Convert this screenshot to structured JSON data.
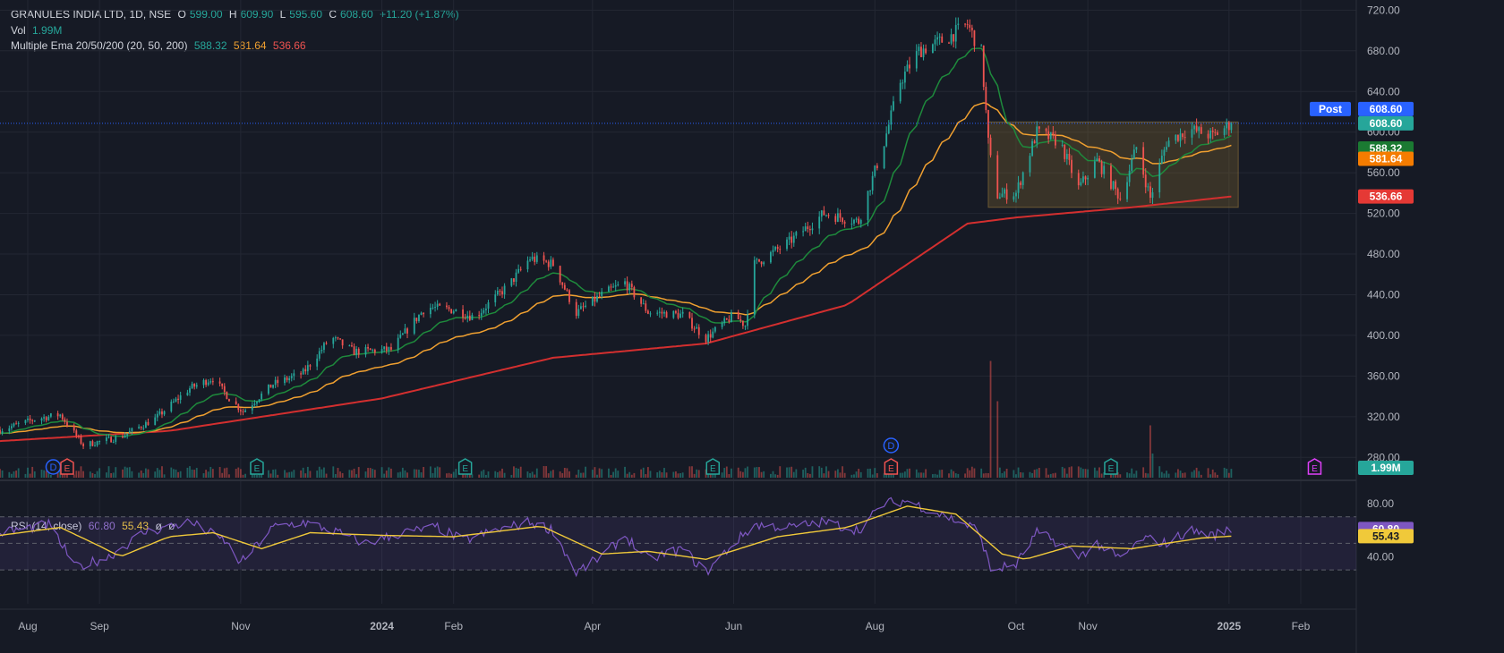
{
  "header": {
    "symbol": "GRANULES INDIA LTD, 1D, NSE",
    "o_label": "O",
    "o": "599.00",
    "h_label": "H",
    "h": "609.90",
    "l_label": "L",
    "l": "595.60",
    "c_label": "C",
    "c": "608.60",
    "change": "+11.20 (+1.87%)",
    "vol_label": "Vol",
    "vol": "1.99M",
    "ema_label": "Multiple Ema 20/50/200 (20, 50, 200)",
    "ema20": "588.32",
    "ema50": "581.64",
    "ema200": "536.66"
  },
  "rsi_header": {
    "label": "RSI (14, close)",
    "rsi": "60.80",
    "ma": "55.43",
    "s1": "ø",
    "s2": "ø"
  },
  "colors": {
    "background": "#161a25",
    "up": "#26a69a",
    "down": "#ef5350",
    "ema20": "#1e8a3c",
    "ema50": "#f0a030",
    "ema200": "#d32f2f",
    "rsi": "#7e57c2",
    "rsi_ma": "#f0c93a",
    "price_line": "#2962ff"
  },
  "chart_data": {
    "type": "candlestick",
    "title": "GRANULES INDIA LTD, 1D, NSE",
    "y_range": [
      260,
      730
    ],
    "y_ticks": [
      "720.00",
      "680.00",
      "640.00",
      "600.00",
      "560.00",
      "520.00",
      "480.00",
      "440.00",
      "400.00",
      "360.00",
      "320.00",
      "280.00"
    ],
    "x_range": [
      "2023-07-20",
      "2025-02-25"
    ],
    "x_ticks": [
      {
        "label": "Aug",
        "date": "2023-08-01"
      },
      {
        "label": "Sep",
        "date": "2023-09-01"
      },
      {
        "label": "Nov",
        "date": "2023-11-01"
      },
      {
        "label": "2024",
        "date": "2024-01-01"
      },
      {
        "label": "Feb",
        "date": "2024-02-01"
      },
      {
        "label": "Apr",
        "date": "2024-04-01"
      },
      {
        "label": "Jun",
        "date": "2024-06-01"
      },
      {
        "label": "Aug",
        "date": "2024-08-01"
      },
      {
        "label": "Oct",
        "date": "2024-10-01"
      },
      {
        "label": "Nov",
        "date": "2024-11-01"
      },
      {
        "label": "2025",
        "date": "2025-01-01"
      },
      {
        "label": "Feb",
        "date": "2025-02-01"
      }
    ],
    "last_close": 608.6,
    "price_path": [
      [
        "2023-07-20",
        307
      ],
      [
        "2023-08-05",
        318
      ],
      [
        "2023-08-15",
        322
      ],
      [
        "2023-08-25",
        292
      ],
      [
        "2023-09-10",
        300
      ],
      [
        "2023-09-25",
        318
      ],
      [
        "2023-10-10",
        348
      ],
      [
        "2023-10-20",
        358
      ],
      [
        "2023-10-27",
        338
      ],
      [
        "2023-11-02",
        325
      ],
      [
        "2023-11-15",
        352
      ],
      [
        "2023-11-28",
        363
      ],
      [
        "2023-12-10",
        398
      ],
      [
        "2023-12-20",
        384
      ],
      [
        "2024-01-05",
        386
      ],
      [
        "2024-01-20",
        428
      ],
      [
        "2024-02-01",
        425
      ],
      [
        "2024-02-10",
        418
      ],
      [
        "2024-02-25",
        450
      ],
      [
        "2024-03-05",
        476
      ],
      [
        "2024-03-15",
        470
      ],
      [
        "2024-03-25",
        422
      ],
      [
        "2024-04-05",
        440
      ],
      [
        "2024-04-15",
        452
      ],
      [
        "2024-04-25",
        423
      ],
      [
        "2024-05-10",
        420
      ],
      [
        "2024-05-20",
        397
      ],
      [
        "2024-06-01",
        420
      ],
      [
        "2024-06-06",
        410
      ],
      [
        "2024-06-10",
        470
      ],
      [
        "2024-06-25",
        492
      ],
      [
        "2024-07-10",
        520
      ],
      [
        "2024-07-25",
        512
      ],
      [
        "2024-08-05",
        590
      ],
      [
        "2024-08-12",
        650
      ],
      [
        "2024-08-20",
        680
      ],
      [
        "2024-09-01",
        692
      ],
      [
        "2024-09-10",
        706
      ],
      [
        "2024-09-16",
        678
      ],
      [
        "2024-09-19",
        590
      ],
      [
        "2024-09-22",
        538
      ],
      [
        "2024-10-01",
        540
      ],
      [
        "2024-10-10",
        600
      ],
      [
        "2024-10-20",
        590
      ],
      [
        "2024-10-28",
        545
      ],
      [
        "2024-11-05",
        572
      ],
      [
        "2024-11-15",
        535
      ],
      [
        "2024-11-22",
        585
      ],
      [
        "2024-11-28",
        535
      ],
      [
        "2024-12-05",
        590
      ],
      [
        "2024-12-15",
        603
      ],
      [
        "2024-12-25",
        596
      ],
      [
        "2025-01-02",
        608.6
      ]
    ],
    "series": [
      {
        "name": "EMA 20",
        "last": 588.32
      },
      {
        "name": "EMA 50",
        "last": 581.64
      },
      {
        "name": "EMA 200",
        "last": 536.66
      }
    ],
    "range_box": {
      "start": "2024-09-19",
      "end": "2025-01-05",
      "low": 526,
      "high": 610
    },
    "volume": {
      "last": "1.99M",
      "spikes": [
        {
          "date": "2024-09-20",
          "value": 2.9
        },
        {
          "date": "2024-09-23",
          "value": 1.9
        },
        {
          "date": "2024-11-28",
          "value": 1.3
        },
        {
          "date": "2024-11-29",
          "value": 0.6
        }
      ]
    },
    "events": [
      {
        "label": "D",
        "date": "2023-08-12",
        "type": "dividend"
      },
      {
        "label": "E",
        "date": "2023-08-18",
        "type": "earnings-red"
      },
      {
        "label": "E",
        "date": "2023-11-08",
        "type": "earnings"
      },
      {
        "label": "E",
        "date": "2024-02-06",
        "type": "earnings"
      },
      {
        "label": "E",
        "date": "2024-05-23",
        "type": "earnings"
      },
      {
        "label": "D",
        "date": "2024-08-08",
        "type": "dividend"
      },
      {
        "label": "E",
        "date": "2024-08-08",
        "type": "earnings-red"
      },
      {
        "label": "E",
        "date": "2024-11-11",
        "type": "earnings"
      },
      {
        "label": "E",
        "date": "2025-02-07",
        "type": "earnings-future"
      }
    ],
    "rsi": {
      "y_ticks": [
        "80.00",
        "40.00"
      ],
      "y_range": [
        18,
        92
      ],
      "upper": 70,
      "lower": 30,
      "mid": 50,
      "last": 60.8,
      "ma_last": 55.43,
      "path": [
        [
          "2023-07-20",
          58
        ],
        [
          "2023-08-10",
          64
        ],
        [
          "2023-08-22",
          32
        ],
        [
          "2023-09-05",
          40
        ],
        [
          "2023-09-20",
          58
        ],
        [
          "2023-10-10",
          66
        ],
        [
          "2023-10-25",
          52
        ],
        [
          "2023-11-01",
          35
        ],
        [
          "2023-11-15",
          62
        ],
        [
          "2023-11-28",
          66
        ],
        [
          "2023-12-10",
          60
        ],
        [
          "2023-12-25",
          50
        ],
        [
          "2024-01-10",
          58
        ],
        [
          "2024-01-25",
          62
        ],
        [
          "2024-02-05",
          52
        ],
        [
          "2024-02-20",
          60
        ],
        [
          "2024-03-05",
          66
        ],
        [
          "2024-03-15",
          60
        ],
        [
          "2024-03-25",
          28
        ],
        [
          "2024-04-05",
          40
        ],
        [
          "2024-04-15",
          56
        ],
        [
          "2024-04-25",
          38
        ],
        [
          "2024-05-10",
          46
        ],
        [
          "2024-05-20",
          28
        ],
        [
          "2024-06-01",
          50
        ],
        [
          "2024-06-10",
          64
        ],
        [
          "2024-06-25",
          62
        ],
        [
          "2024-07-10",
          66
        ],
        [
          "2024-07-25",
          60
        ],
        [
          "2024-08-05",
          80
        ],
        [
          "2024-08-15",
          82
        ],
        [
          "2024-09-01",
          70
        ],
        [
          "2024-09-15",
          60
        ],
        [
          "2024-09-20",
          30
        ],
        [
          "2024-10-01",
          34
        ],
        [
          "2024-10-10",
          58
        ],
        [
          "2024-10-20",
          50
        ],
        [
          "2024-10-28",
          40
        ],
        [
          "2024-11-05",
          50
        ],
        [
          "2024-11-15",
          38
        ],
        [
          "2024-11-25",
          54
        ],
        [
          "2024-12-05",
          50
        ],
        [
          "2024-12-15",
          60
        ],
        [
          "2024-12-25",
          56
        ],
        [
          "2025-01-02",
          60.8
        ]
      ],
      "ma_path": [
        [
          "2023-07-20",
          56
        ],
        [
          "2023-08-15",
          62
        ],
        [
          "2023-09-01",
          48
        ],
        [
          "2023-09-10",
          40
        ],
        [
          "2023-10-01",
          55
        ],
        [
          "2023-10-20",
          58
        ],
        [
          "2023-11-10",
          46
        ],
        [
          "2023-12-01",
          58
        ],
        [
          "2024-01-01",
          56
        ],
        [
          "2024-02-01",
          55
        ],
        [
          "2024-03-10",
          63
        ],
        [
          "2024-04-05",
          42
        ],
        [
          "2024-04-25",
          44
        ],
        [
          "2024-05-20",
          38
        ],
        [
          "2024-06-20",
          55
        ],
        [
          "2024-07-20",
          62
        ],
        [
          "2024-08-15",
          78
        ],
        [
          "2024-09-05",
          72
        ],
        [
          "2024-09-25",
          42
        ],
        [
          "2024-10-05",
          38
        ],
        [
          "2024-10-25",
          48
        ],
        [
          "2024-11-20",
          46
        ],
        [
          "2024-12-20",
          54
        ],
        [
          "2025-01-02",
          55.43
        ]
      ]
    }
  },
  "labels": {
    "post": "Post",
    "last_price": "608.60",
    "last_price_green": "608.60",
    "ema20": "588.32",
    "ema50": "581.64",
    "ema200": "536.66",
    "vol": "1.99M",
    "rsi": "60.80",
    "rsi_ma": "55.43"
  }
}
